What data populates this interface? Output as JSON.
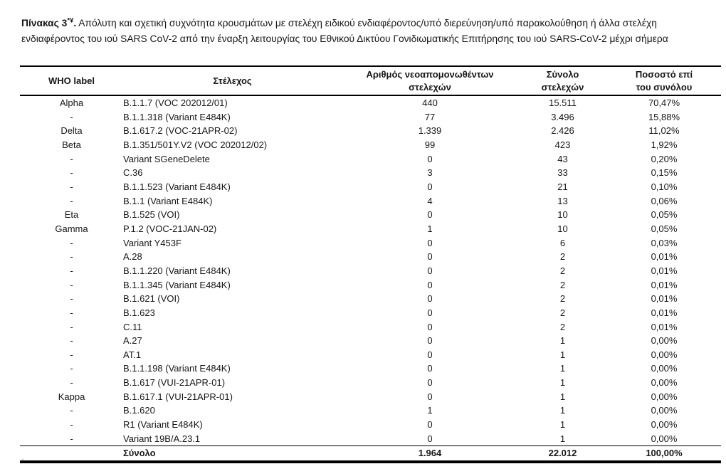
{
  "title": {
    "prefix_bold": "Πίνακας 3",
    "superscript": "*¥",
    "separator": ".",
    "body": " Απόλυτη και σχετική συχνότητα κρουσμάτων με στελέχη ειδικού ενδιαφέροντος/υπό διερεύνηση/υπό παρακολούθηση ή άλλα στελέχη ενδιαφέροντος του ιού SARS CoV-2 από την έναρξη λειτουργίας του Εθνικού Δικτύου Γονιδιωματικής Επιτήρησης του ιού SARS-CoV-2 μέχρι σήμερα"
  },
  "table": {
    "columns": [
      "WHO label",
      "Στέλεχος",
      "Αριθμός νεοαπομονωθέντων\nστελεχών",
      "Σύνολο\nστελεχών",
      "Ποσοστό επί\nτου συνόλου"
    ],
    "rows": [
      {
        "who_label": "Alpha",
        "strain": "B.1.1.7 (VOC 202012/01)",
        "new_isolated": "440",
        "total": "15.511",
        "percent": "70,47%"
      },
      {
        "who_label": "-",
        "strain": "B.1.1.318 (Variant E484K)",
        "new_isolated": "77",
        "total": "3.496",
        "percent": "15,88%"
      },
      {
        "who_label": "Delta",
        "strain": "B.1.617.2 (VOC-21APR-02)",
        "new_isolated": "1.339",
        "total": "2.426",
        "percent": "11,02%"
      },
      {
        "who_label": "Beta",
        "strain": "B.1.351/501Y.V2 (VOC 202012/02)",
        "new_isolated": "99",
        "total": "423",
        "percent": "1,92%"
      },
      {
        "who_label": "-",
        "strain": "Variant SGeneDelete",
        "new_isolated": "0",
        "total": "43",
        "percent": "0,20%"
      },
      {
        "who_label": "-",
        "strain": "C.36",
        "new_isolated": "3",
        "total": "33",
        "percent": "0,15%"
      },
      {
        "who_label": "-",
        "strain": "B.1.1.523 (Variant E484K)",
        "new_isolated": "0",
        "total": "21",
        "percent": "0,10%"
      },
      {
        "who_label": "-",
        "strain": "B.1.1 (Variant E484K)",
        "new_isolated": "4",
        "total": "13",
        "percent": "0,06%"
      },
      {
        "who_label": "Eta",
        "strain": "B.1.525 (VOI)",
        "new_isolated": "0",
        "total": "10",
        "percent": "0,05%"
      },
      {
        "who_label": "Gamma",
        "strain": "P.1.2 (VOC-21JAN-02)",
        "new_isolated": "1",
        "total": "10",
        "percent": "0,05%"
      },
      {
        "who_label": "-",
        "strain": "Variant Y453F",
        "new_isolated": "0",
        "total": "6",
        "percent": "0,03%"
      },
      {
        "who_label": "-",
        "strain": "A.28",
        "new_isolated": "0",
        "total": "2",
        "percent": "0,01%"
      },
      {
        "who_label": "-",
        "strain": "B.1.1.220 (Variant E484K)",
        "new_isolated": "0",
        "total": "2",
        "percent": "0,01%"
      },
      {
        "who_label": "-",
        "strain": "B.1.1.345 (Variant E484K)",
        "new_isolated": "0",
        "total": "2",
        "percent": "0,01%"
      },
      {
        "who_label": "-",
        "strain": "B.1.621 (VOI)",
        "new_isolated": "0",
        "total": "2",
        "percent": "0,01%"
      },
      {
        "who_label": "-",
        "strain": "B.1.623",
        "new_isolated": "0",
        "total": "2",
        "percent": "0,01%"
      },
      {
        "who_label": "-",
        "strain": "C.11",
        "new_isolated": "0",
        "total": "2",
        "percent": "0,01%"
      },
      {
        "who_label": "-",
        "strain": "A.27",
        "new_isolated": "0",
        "total": "1",
        "percent": "0,00%"
      },
      {
        "who_label": "-",
        "strain": "AT.1",
        "new_isolated": "0",
        "total": "1",
        "percent": "0,00%"
      },
      {
        "who_label": "-",
        "strain": "B.1.1.198 (Variant E484K)",
        "new_isolated": "0",
        "total": "1",
        "percent": "0,00%"
      },
      {
        "who_label": "-",
        "strain": "B.1.617 (VUI-21APR-01)",
        "new_isolated": "0",
        "total": "1",
        "percent": "0,00%"
      },
      {
        "who_label": "Kappa",
        "strain": "B.1.617.1 (VUI-21APR-01)",
        "new_isolated": "0",
        "total": "1",
        "percent": "0,00%"
      },
      {
        "who_label": "-",
        "strain": "B.1.620",
        "new_isolated": "1",
        "total": "1",
        "percent": "0,00%"
      },
      {
        "who_label": "-",
        "strain": "R1 (Variant E484K)",
        "new_isolated": "0",
        "total": "1",
        "percent": "0,00%"
      },
      {
        "who_label": "-",
        "strain": "Variant 19B/A.23.1",
        "new_isolated": "0",
        "total": "1",
        "percent": "0,00%"
      }
    ],
    "total_row": {
      "who_label": "",
      "label": "Σύνολο",
      "new_isolated": "1.964",
      "total": "22.012",
      "percent": "100,00%"
    }
  },
  "artifacts": {
    "footnote_mark": "*"
  }
}
